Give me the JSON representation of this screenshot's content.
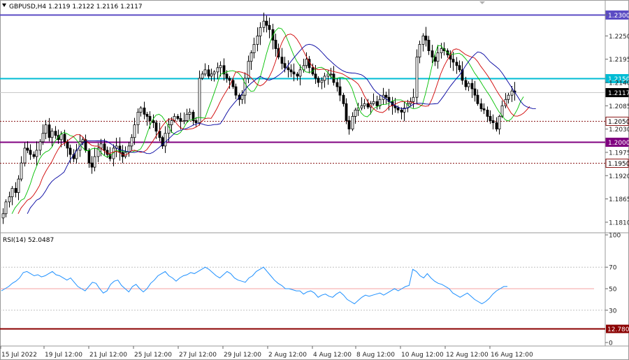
{
  "header": {
    "symbol": "GBPUSD,H4",
    "ohlc": "1.2119 1.2122 1.2116 1.2117",
    "rsi_label": "RSI(14) 52.0487"
  },
  "price_axis": {
    "ticks": [
      "1.2300",
      "1.2250",
      "1.2195",
      "1.2140",
      "1.2085",
      "1.2030",
      "1.1975",
      "1.1920",
      "1.1865",
      "1.1810"
    ],
    "tick_values": [
      1.23,
      1.225,
      1.2195,
      1.214,
      1.2085,
      1.203,
      1.1975,
      1.192,
      1.1865,
      1.181
    ]
  },
  "rsi_axis": {
    "ticks": [
      "100",
      "70",
      "50",
      "30",
      "0"
    ],
    "tick_values": [
      100,
      70,
      50,
      30,
      0
    ]
  },
  "time_axis": {
    "labels": [
      "15 Jul 2022",
      "19 Jul 12:00",
      "21 Jul 12:00",
      "25 Jul 12:00",
      "27 Jul 12:00",
      "29 Jul 12:00",
      "2 Aug 12:00",
      "4 Aug 12:00",
      "8 Aug 12:00",
      "10 Aug 12:00",
      "12 Aug 12:00",
      "16 Aug 12:00"
    ]
  },
  "levels": [
    {
      "value": 1.23,
      "label": "1.2300",
      "color": "#5b4bc4",
      "style": "solid",
      "tag_bg": "#5b4bc4",
      "tag_fg": "#ffffff"
    },
    {
      "value": 1.215,
      "label": "1.2150",
      "color": "#00bcd4",
      "style": "solid",
      "tag_bg": "#00bcd4",
      "tag_fg": "#ffffff"
    },
    {
      "value": 1.2117,
      "label": "1.2117",
      "color": "#c8c8c8",
      "style": "solid",
      "tag_bg": "#000000",
      "tag_fg": "#ffffff"
    },
    {
      "value": 1.205,
      "label": "1.2050",
      "color": "#8b1a1a",
      "style": "dotted",
      "tag_bg": "#ffffff",
      "tag_fg": "#000000"
    },
    {
      "value": 1.2,
      "label": "1.2000",
      "color": "#800080",
      "style": "solid",
      "tag_bg": "#800080",
      "tag_fg": "#ffffff"
    },
    {
      "value": 1.195,
      "label": "1.1950",
      "color": "#8b1a1a",
      "style": "dotted",
      "tag_bg": "#ffffff",
      "tag_fg": "#000000"
    }
  ],
  "rsi_levels": [
    {
      "value": 12.78,
      "label": "12.7800",
      "color": "#8b0000",
      "tag_bg": "#8b0000",
      "tag_fg": "#ffffff"
    }
  ],
  "chart_data": {
    "type": "candlestick",
    "title": "GBPUSD,H4",
    "ylim": [
      1.179,
      1.232
    ],
    "rsi_ylim": [
      0,
      100
    ],
    "colors": {
      "bull": "#ffffff",
      "bear": "#000000",
      "fast_ma": "#00c000",
      "mid_ma": "#d00000",
      "slow_ma": "#0000a0",
      "rsi": "#1e90ff",
      "rsi50": "#f4a0a0"
    },
    "closes": [
      1.183,
      1.1858,
      1.187,
      1.189,
      1.188,
      1.1912,
      1.195,
      1.1985,
      1.198,
      1.197,
      1.1965,
      1.198,
      1.2,
      1.202,
      1.204,
      1.201,
      1.2025,
      1.2015,
      1.2005,
      1.2018,
      1.2,
      1.1985,
      1.197,
      1.196,
      1.198,
      1.2,
      1.2005,
      1.198,
      1.195,
      1.194,
      1.1965,
      1.1985,
      1.1995,
      1.198,
      1.197,
      1.196,
      1.1985,
      1.199,
      1.1975,
      1.1965,
      1.1975,
      1.199,
      1.201,
      1.204,
      1.207,
      1.208,
      1.2065,
      1.206,
      1.205,
      1.2045,
      1.2025,
      1.201,
      1.199,
      1.202,
      1.204,
      1.205,
      1.206,
      1.2055,
      1.2048,
      1.205,
      1.2065,
      1.207,
      1.205,
      1.2045,
      1.215,
      1.216,
      1.217,
      1.2155,
      1.216,
      1.2165,
      1.2175,
      1.218,
      1.216,
      1.215,
      1.2145,
      1.213,
      1.211,
      1.21,
      1.211,
      1.215,
      1.219,
      1.221,
      1.223,
      1.225,
      1.227,
      1.2285,
      1.2275,
      1.2265,
      1.224,
      1.222,
      1.22,
      1.2185,
      1.2175,
      1.217,
      1.2165,
      1.216,
      1.2155,
      1.217,
      1.218,
      1.2195,
      1.2175,
      1.216,
      1.215,
      1.214,
      1.2145,
      1.2155,
      1.216,
      1.216,
      1.214,
      1.213,
      1.211,
      1.209,
      1.205,
      1.203,
      1.206,
      1.2075,
      1.208,
      1.2085,
      1.209,
      1.2082,
      1.209,
      1.2095,
      1.2085,
      1.21,
      1.211,
      1.2105,
      1.2095,
      1.2085,
      1.208,
      1.2075,
      1.207,
      1.208,
      1.209,
      1.2095,
      1.2105,
      1.22,
      1.223,
      1.225,
      1.224,
      1.2215,
      1.22,
      1.219,
      1.221,
      1.222,
      1.2215,
      1.2205,
      1.2195,
      1.2188,
      1.218,
      1.217,
      1.2145,
      1.213,
      1.2138,
      1.2125,
      1.211,
      1.209,
      1.2078,
      1.2075,
      1.206,
      1.205,
      1.2045,
      1.203,
      1.206,
      1.2085,
      1.21,
      1.211,
      1.212,
      1.2117
    ],
    "rsi_values": [
      48,
      50,
      52,
      55,
      57,
      60,
      65,
      66,
      64,
      62,
      63,
      61,
      62,
      64,
      66,
      63,
      62,
      60,
      58,
      60,
      56,
      52,
      50,
      48,
      52,
      56,
      55,
      50,
      46,
      48,
      54,
      57,
      58,
      53,
      50,
      47,
      52,
      54,
      50,
      47,
      50,
      55,
      58,
      62,
      64,
      66,
      62,
      60,
      57,
      60,
      62,
      63,
      65,
      64,
      66,
      68,
      70,
      68,
      65,
      62,
      60,
      63,
      66,
      64,
      60,
      58,
      57,
      56,
      60,
      62,
      66,
      68,
      70,
      66,
      62,
      58,
      55,
      53,
      50,
      50,
      49,
      48,
      48,
      45,
      47,
      48,
      46,
      42,
      44,
      45,
      43,
      42,
      45,
      47,
      44,
      40,
      38,
      36,
      39,
      42,
      44,
      43,
      44,
      45,
      46,
      44,
      46,
      48,
      50,
      48,
      50,
      52,
      53,
      68,
      66,
      62,
      60,
      64,
      60,
      57,
      55,
      54,
      52,
      50,
      46,
      44,
      42,
      44,
      46,
      43,
      40,
      38,
      36,
      38,
      41,
      45,
      48,
      50,
      52,
      52.05
    ],
    "rsi_last": 52.0487
  }
}
